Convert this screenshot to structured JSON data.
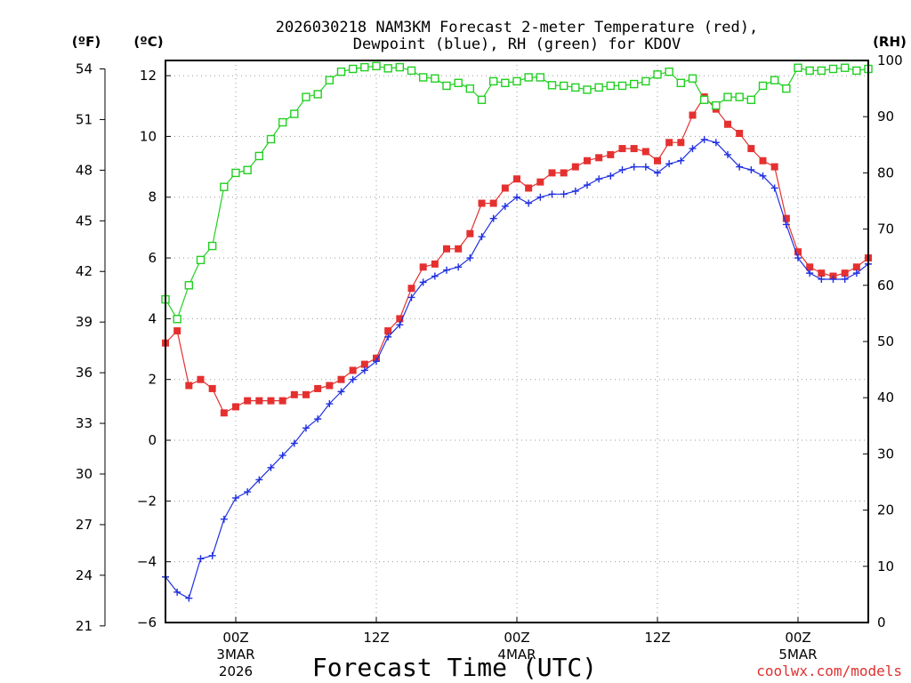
{
  "chart_data": {
    "type": "line",
    "title_line1": "2026030218 NAM3KM Forecast 2-meter Temperature (red),",
    "title_line2": "Dewpoint (blue), RH (green) for KDOV",
    "xlabel": "Forecast Time (UTC)",
    "credit": "coolwx.com/models",
    "units": {
      "fahrenheit": "(ºF)",
      "celsius": "(ºC)",
      "rh": "(RH)"
    },
    "x_start_hour": 18,
    "x_range_hours": [
      18,
      78
    ],
    "ylim_c": [
      -6,
      12.5
    ],
    "ylim_rh": [
      0,
      100
    ],
    "yticks_c": [
      "-6",
      "-4",
      "-2",
      "0",
      "2",
      "4",
      "6",
      "8",
      "10",
      "12"
    ],
    "yticks_f": [
      "21",
      "24",
      "27",
      "30",
      "33",
      "36",
      "39",
      "42",
      "45",
      "48",
      "51",
      "54"
    ],
    "yticks_rh": [
      "0",
      "10",
      "20",
      "30",
      "40",
      "50",
      "60",
      "70",
      "80",
      "90",
      "100"
    ],
    "x_ticks": [
      {
        "hour": 24,
        "label": "00Z",
        "sub1": "3MAR",
        "sub2": "2026"
      },
      {
        "hour": 36,
        "label": "12Z",
        "sub1": "",
        "sub2": ""
      },
      {
        "hour": 48,
        "label": "00Z",
        "sub1": "4MAR",
        "sub2": ""
      },
      {
        "hour": 60,
        "label": "12Z",
        "sub1": "",
        "sub2": ""
      },
      {
        "hour": 72,
        "label": "00Z",
        "sub1": "5MAR",
        "sub2": ""
      }
    ],
    "series": [
      {
        "name": "Temperature (°C)",
        "axis": "celsius",
        "color": "#e53030",
        "marker": "filled-square",
        "values": [
          3.2,
          3.6,
          1.8,
          2.0,
          1.7,
          0.9,
          1.1,
          1.3,
          1.3,
          1.3,
          1.3,
          1.5,
          1.5,
          1.7,
          1.8,
          2.0,
          2.3,
          2.5,
          2.7,
          3.6,
          4.0,
          5.0,
          5.7,
          5.8,
          6.3,
          6.3,
          6.8,
          7.8,
          7.8,
          8.3,
          8.6,
          8.3,
          8.5,
          8.8,
          8.8,
          9.0,
          9.2,
          9.3,
          9.4,
          9.6,
          9.6,
          9.5,
          9.2,
          9.8,
          9.8,
          10.7,
          11.3,
          10.9,
          10.4,
          10.1,
          9.6,
          9.2,
          9.0,
          7.3,
          6.2,
          5.7,
          5.5,
          5.4,
          5.5,
          5.7,
          6.0
        ]
      },
      {
        "name": "Dewpoint (°C)",
        "axis": "celsius",
        "color": "#2030e0",
        "marker": "plus",
        "values": [
          -4.5,
          -5.0,
          -5.2,
          -3.9,
          -3.8,
          -2.6,
          -1.9,
          -1.7,
          -1.3,
          -0.9,
          -0.5,
          -0.1,
          0.4,
          0.7,
          1.2,
          1.6,
          2.0,
          2.3,
          2.6,
          3.4,
          3.8,
          4.7,
          5.2,
          5.4,
          5.6,
          5.7,
          6.0,
          6.7,
          7.3,
          7.7,
          8.0,
          7.8,
          8.0,
          8.1,
          8.1,
          8.2,
          8.4,
          8.6,
          8.7,
          8.9,
          9.0,
          9.0,
          8.8,
          9.1,
          9.2,
          9.6,
          9.9,
          9.8,
          9.4,
          9.0,
          8.9,
          8.7,
          8.3,
          7.1,
          6.0,
          5.5,
          5.3,
          5.3,
          5.3,
          5.5,
          5.8
        ]
      },
      {
        "name": "RH (%)",
        "axis": "rh",
        "color": "#20d020",
        "marker": "open-square",
        "values": [
          57.5,
          54,
          60,
          64.5,
          67,
          77.5,
          80,
          80.5,
          83,
          86,
          89,
          90.5,
          93.5,
          94,
          96.5,
          98,
          98.5,
          98.8,
          99,
          98.6,
          98.8,
          98.2,
          97,
          96.8,
          95.5,
          96,
          95,
          93,
          96.3,
          96,
          96.3,
          97,
          97,
          95.6,
          95.5,
          95.2,
          94.8,
          95.2,
          95.5,
          95.5,
          95.8,
          96.3,
          97.5,
          98,
          96,
          96.8,
          93,
          92,
          93.5,
          93.5,
          93,
          95.5,
          96.5,
          95,
          98.7,
          98.2,
          98.2,
          98.5,
          98.7,
          98.2,
          98.5
        ]
      }
    ]
  }
}
